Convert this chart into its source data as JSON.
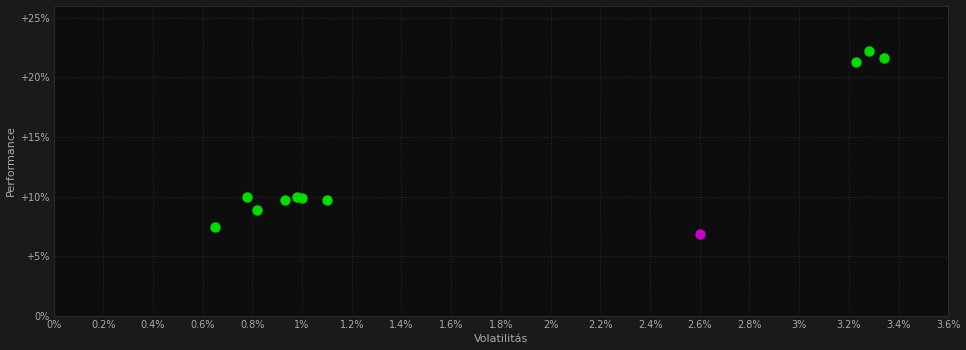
{
  "background_color": "#1a1a1a",
  "plot_bg_color": "#0d0d0d",
  "text_color": "#aaaaaa",
  "xlabel": "Volatilitás",
  "ylabel": "Performance",
  "xlim": [
    0,
    0.036
  ],
  "ylim": [
    0,
    0.26
  ],
  "green_points": [
    [
      0.0065,
      0.075
    ],
    [
      0.0078,
      0.1
    ],
    [
      0.0082,
      0.089
    ],
    [
      0.0093,
      0.097
    ],
    [
      0.0098,
      0.1
    ],
    [
      0.01,
      0.099
    ],
    [
      0.011,
      0.097
    ],
    [
      0.0323,
      0.213
    ],
    [
      0.0328,
      0.222
    ],
    [
      0.0334,
      0.216
    ]
  ],
  "magenta_points": [
    [
      0.026,
      0.069
    ]
  ],
  "marker_size": 42
}
